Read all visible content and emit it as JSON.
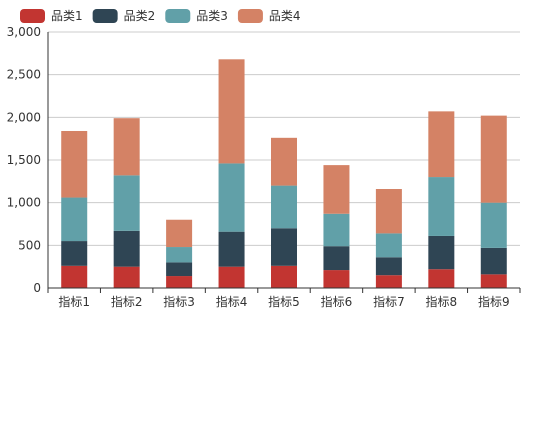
{
  "chart_data": {
    "type": "bar",
    "stacked": true,
    "categories": [
      "指标1",
      "指标2",
      "指标3",
      "指标4",
      "指标5",
      "指标6",
      "指标7",
      "指标8",
      "指标9"
    ],
    "series": [
      {
        "name": "品类1",
        "color": "#c23531",
        "values": [
          260,
          250,
          140,
          250,
          260,
          210,
          150,
          220,
          160
        ]
      },
      {
        "name": "品类2",
        "color": "#2f4554",
        "values": [
          290,
          420,
          160,
          410,
          440,
          280,
          210,
          390,
          310
        ]
      },
      {
        "name": "品类3",
        "color": "#61a0a8",
        "values": [
          510,
          650,
          180,
          800,
          500,
          380,
          280,
          690,
          530
        ]
      },
      {
        "name": "品类4",
        "color": "#d48265",
        "values": [
          780,
          670,
          320,
          1220,
          560,
          570,
          520,
          770,
          1020
        ]
      }
    ],
    "y_ticks": [
      "0",
      "500",
      "1,000",
      "1,500",
      "2,000",
      "2,500",
      "3,000"
    ],
    "ylim": [
      0,
      3000
    ],
    "grid": true,
    "legend_position": "top-left"
  }
}
